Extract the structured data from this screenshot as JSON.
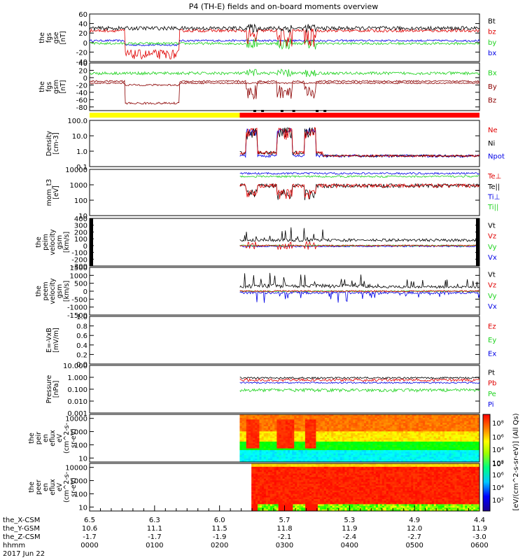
{
  "title": "P4 (TH-E) fields and on-board moments overview",
  "colors": {
    "black": "#000000",
    "red": "#e00000",
    "green": "#1ed21e",
    "blue": "#0000e6",
    "darkred": "#8b0000",
    "yellow": "#ffff00",
    "barred": "#ff0000"
  },
  "time_axis": {
    "ticks": [
      "0000",
      "0100",
      "0200",
      "0300",
      "0400",
      "0500",
      "0600"
    ],
    "rows": [
      {
        "label": "the_X-CSM",
        "values": [
          "6.5",
          "6.3",
          "6.0",
          "5.7",
          "5.3",
          "4.9",
          "4.4"
        ]
      },
      {
        "label": "the_Y-GSM",
        "values": [
          "10.6",
          "11.1",
          "11.5",
          "11.8",
          "11.9",
          "12.0",
          "11.9"
        ]
      },
      {
        "label": "the_Z-CSM",
        "values": [
          "-1.7",
          "-1.7",
          "-1.9",
          "-2.1",
          "-2.4",
          "-2.7",
          "-3.0"
        ]
      },
      {
        "label": "hhmm",
        "values": [
          "0000",
          "0100",
          "0200",
          "0300",
          "0400",
          "0500",
          "0600"
        ]
      }
    ],
    "date": "2017 Jun 22"
  },
  "chart_data": [
    {
      "type": "line",
      "id": "fgs-gse",
      "ylabel": [
        "the",
        "fgs",
        "gse",
        "[nT]"
      ],
      "yscale": "linear",
      "ylim": [
        -40,
        60
      ],
      "yticks": [
        "60",
        "40",
        "20",
        "0",
        "-20",
        "-40"
      ],
      "series": [
        {
          "name": "Bt",
          "color": "#000000"
        },
        {
          "name": "bz",
          "color": "#e00000"
        },
        {
          "name": "by",
          "color": "#1ed21e"
        },
        {
          "name": "bx",
          "color": "#0000e6"
        }
      ]
    },
    {
      "type": "line",
      "id": "fgs-gsm",
      "ylabel": [
        "the",
        "fgs",
        "gsm",
        "[nT]"
      ],
      "yscale": "linear",
      "ylim": [
        -90,
        40
      ],
      "yticks": [
        "40",
        "20",
        "0",
        "-20",
        "-40",
        "-60",
        "-80"
      ],
      "series": [
        {
          "name": "Bx",
          "color": "#1ed21e"
        },
        {
          "name": "By",
          "color": "#8b0000"
        },
        {
          "name": "Bz",
          "color": "#8b0000"
        }
      ]
    },
    {
      "type": "line",
      "id": "density",
      "ylabel": [
        "Density",
        "[cm-3]"
      ],
      "yscale": "log",
      "ylim": [
        0.1,
        100
      ],
      "yticks": [
        "100.0",
        "10.0",
        "1.0",
        "0.1"
      ],
      "series": [
        {
          "name": "Ne",
          "color": "#e00000"
        },
        {
          "name": "Ni",
          "color": "#000000"
        },
        {
          "name": "Npot",
          "color": "#0000e6"
        }
      ]
    },
    {
      "type": "line",
      "id": "temperature",
      "ylabel": [
        "mom_t3",
        "[eV]"
      ],
      "yscale": "log",
      "ylim": [
        10,
        10000
      ],
      "yticks": [
        "10000",
        "1000",
        "100",
        "10"
      ],
      "series": [
        {
          "name": "Te⊥",
          "color": "#e00000"
        },
        {
          "name": "Te||",
          "color": "#000000"
        },
        {
          "name": "Ti⊥",
          "color": "#0000e6"
        },
        {
          "name": "Ti||",
          "color": "#1ed21e"
        }
      ]
    },
    {
      "type": "line",
      "id": "peim-velocity",
      "ylabel": [
        "the",
        "peim",
        "velocity",
        "gsm",
        "[km/s]"
      ],
      "yscale": "linear",
      "ylim": [
        -300,
        400
      ],
      "yticks": [
        "400",
        "300",
        "200",
        "100",
        "0",
        "-100",
        "-200",
        "-300"
      ],
      "series": [
        {
          "name": "Vt",
          "color": "#000000"
        },
        {
          "name": "Vz",
          "color": "#e00000"
        },
        {
          "name": "Vy",
          "color": "#1ed21e"
        },
        {
          "name": "Vx",
          "color": "#0000e6"
        }
      ]
    },
    {
      "type": "line",
      "id": "peem-velocity",
      "ylabel": [
        "the",
        "peem",
        "velocity",
        "gsm",
        "[km/s]"
      ],
      "yscale": "linear",
      "ylim": [
        -1500,
        1500
      ],
      "yticks": [
        "1500",
        "1000",
        "500",
        "0",
        "-500",
        "-1000",
        "-1500"
      ],
      "series": [
        {
          "name": "Vt",
          "color": "#000000"
        },
        {
          "name": "Vz",
          "color": "#e00000"
        },
        {
          "name": "Vy",
          "color": "#1ed21e"
        },
        {
          "name": "Vx",
          "color": "#0000e6"
        }
      ]
    },
    {
      "type": "line",
      "id": "efield",
      "ylabel": [
        "E=-VxB",
        "[mV/m]"
      ],
      "yscale": "linear",
      "ylim": [
        0,
        1
      ],
      "yticks": [
        "1.0",
        "0.8",
        "0.6",
        "0.4",
        "0.2",
        "0.0"
      ],
      "series": [
        {
          "name": "Ez",
          "color": "#e00000"
        },
        {
          "name": "Ey",
          "color": "#1ed21e"
        },
        {
          "name": "Ex",
          "color": "#0000e6"
        }
      ]
    },
    {
      "type": "line",
      "id": "pressure",
      "ylabel": [
        "Pressure",
        "[nPa]"
      ],
      "yscale": "log",
      "ylim": [
        0.001,
        10
      ],
      "yticks": [
        "10.000",
        "1.000",
        "0.100",
        "0.010",
        "0.001"
      ],
      "series": [
        {
          "name": "Pt",
          "color": "#000000"
        },
        {
          "name": "Pb",
          "color": "#e00000"
        },
        {
          "name": "Pe",
          "color": "#1ed21e"
        },
        {
          "name": "Pi",
          "color": "#0000e6"
        }
      ]
    },
    {
      "type": "heatmap",
      "id": "peir-spec",
      "ylabel": [
        "the",
        "peir",
        "en",
        "eflux",
        "eV",
        "(cm^2-s-",
        "sr-eV)"
      ],
      "yscale": "log",
      "ylim": [
        5,
        20000
      ],
      "yticks": [
        "10000",
        "1000",
        "100",
        "10"
      ]
    },
    {
      "type": "heatmap",
      "id": "peer-spec",
      "ylabel": [
        "the",
        "peer",
        "en",
        "eflux",
        "eV",
        "(cm^2-s-",
        "sr-eV)"
      ],
      "yscale": "log",
      "ylim": [
        5,
        20000
      ],
      "yticks": [
        "10000",
        "1000",
        "100",
        "10"
      ]
    }
  ],
  "colorbar": {
    "ticks_top": [
      "10⁸",
      "10⁶",
      "10⁴",
      "10²"
    ],
    "ticks_bottom": [
      "10⁸",
      "10⁶",
      "10⁴",
      "10²"
    ],
    "label": "[eV/(cm^2-s-sr-eV)] (All Qs)"
  }
}
